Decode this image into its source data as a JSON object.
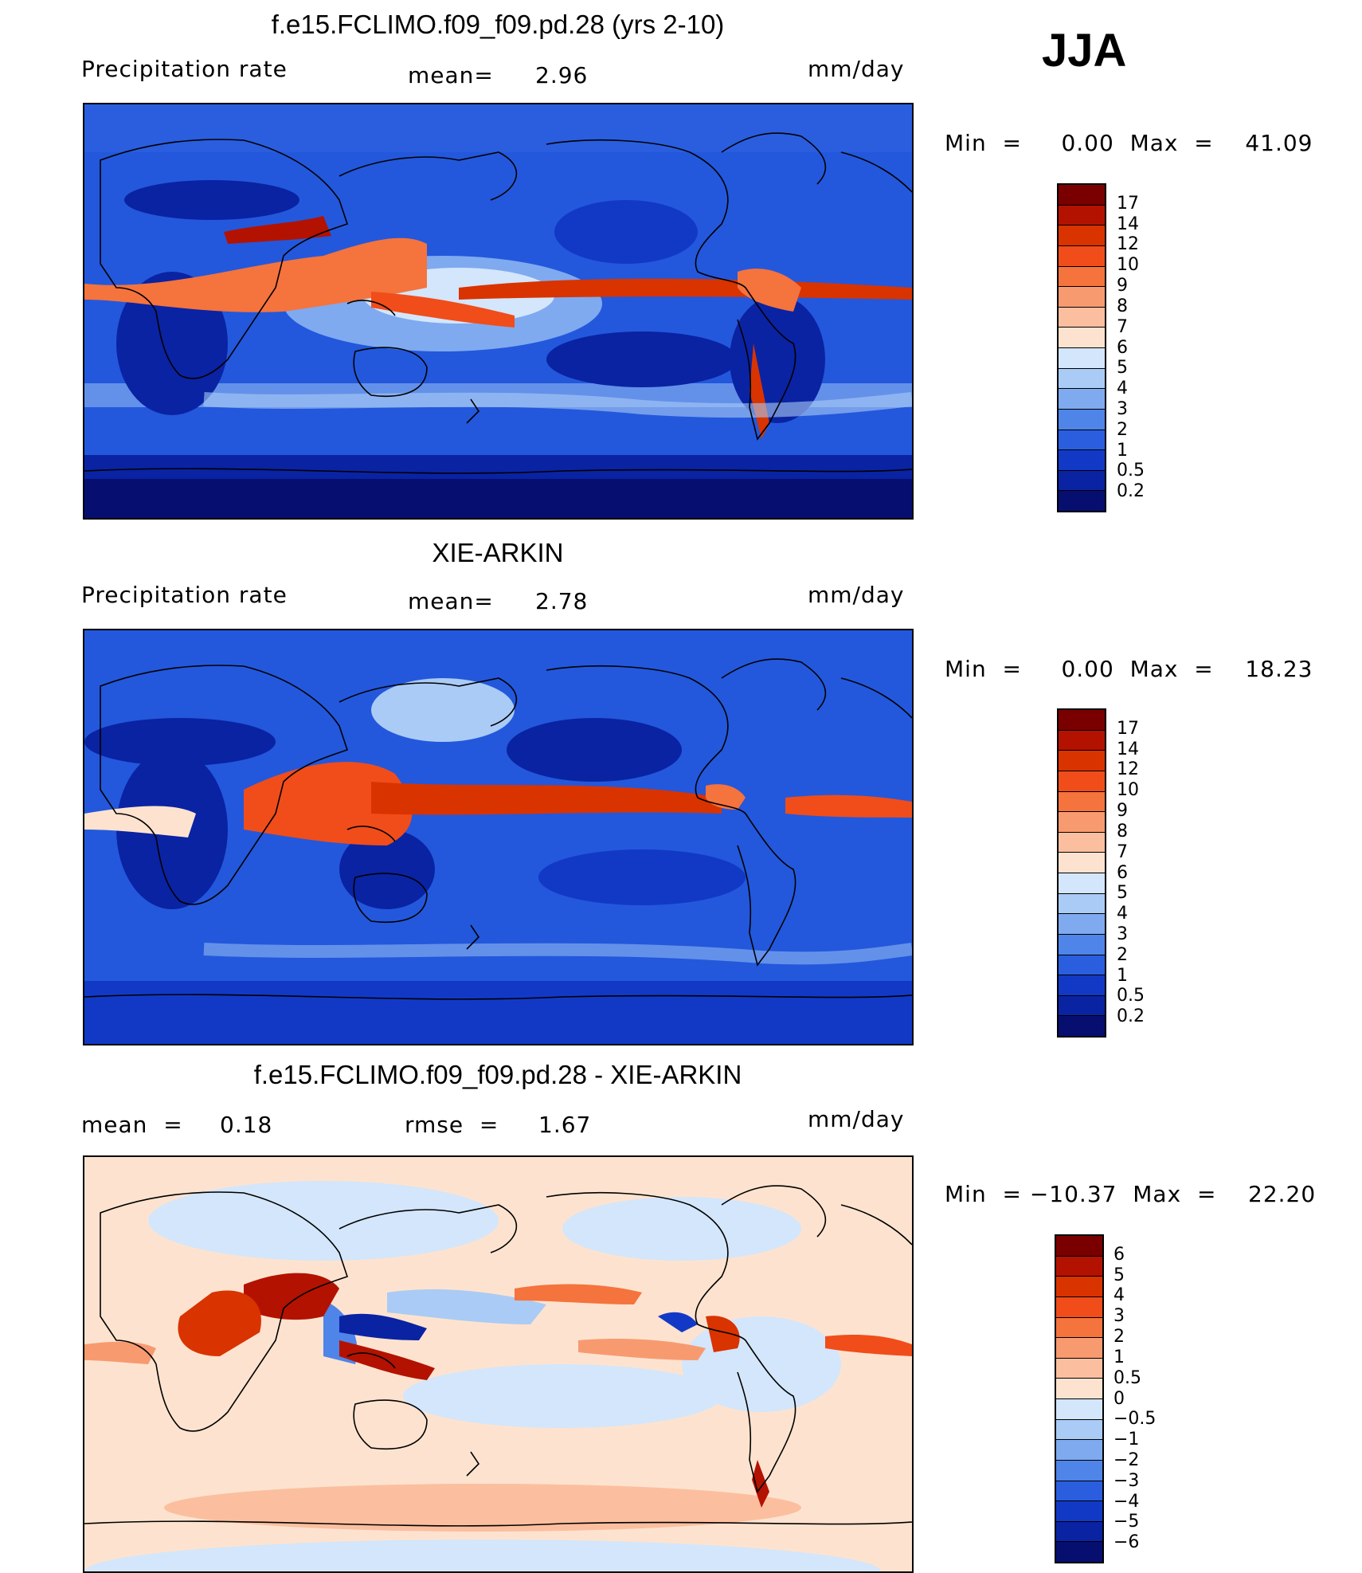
{
  "season": "JJA",
  "panels": [
    {
      "title": "f.e15.FCLIMO.f09_f09.pd.28 (yrs 2-10)",
      "left_label": "Precipitation  rate",
      "mid_label": "mean=",
      "mid_value": "2.96",
      "units": "mm/day",
      "minmax": "Min  =     0.00  Max  =    41.09"
    },
    {
      "title": "XIE-ARKIN",
      "left_label": "Precipitation  rate",
      "mid_label": "mean=",
      "mid_value": "2.78",
      "units": "mm/day",
      "minmax": "Min  =     0.00  Max  =    18.23"
    },
    {
      "title": "f.e15.FCLIMO.f09_f09.pd.28 - XIE-ARKIN",
      "left_label": "mean  =",
      "left_value": "0.18",
      "mid_label": "rmse  =",
      "mid_value": "1.67",
      "units": "mm/day",
      "minmax": "Min  = −10.37  Max  =    22.20"
    }
  ],
  "colorbars": {
    "precip": {
      "ticks": [
        "17",
        "14",
        "12",
        "10",
        "9",
        "8",
        "7",
        "6",
        "5",
        "4",
        "3",
        "2",
        "1",
        "0.5",
        "0.2"
      ],
      "colors": [
        "#7a0000",
        "#b31200",
        "#d93300",
        "#f04d1a",
        "#f5733d",
        "#f89a70",
        "#fbbf9f",
        "#fde3cf",
        "#d3e6fb",
        "#aacbf5",
        "#7faaf0",
        "#4f84e8",
        "#2a5edf",
        "#1239c6",
        "#0a23a3",
        "#060f70"
      ]
    },
    "diff": {
      "ticks": [
        "6",
        "5",
        "4",
        "3",
        "2",
        "1",
        "0.5",
        "0",
        "−0.5",
        "−1",
        "−2",
        "−3",
        "−4",
        "−5",
        "−6"
      ],
      "colors": [
        "#7a0000",
        "#b31200",
        "#d93300",
        "#f04d1a",
        "#f5733d",
        "#f89a70",
        "#fbbf9f",
        "#fde3cf",
        "#d3e6fb",
        "#aacbf5",
        "#7faaf0",
        "#4f84e8",
        "#2a5edf",
        "#1239c6",
        "#0a23a3",
        "#060f70"
      ]
    }
  }
}
